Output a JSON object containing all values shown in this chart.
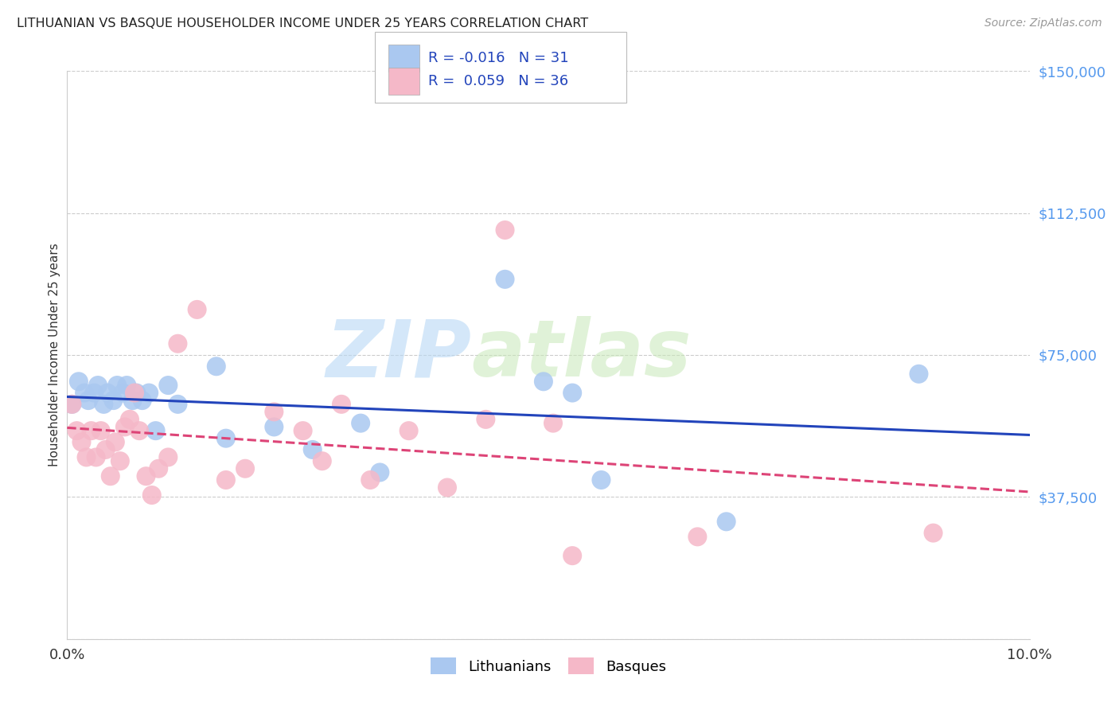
{
  "title": "LITHUANIAN VS BASQUE HOUSEHOLDER INCOME UNDER 25 YEARS CORRELATION CHART",
  "source": "Source: ZipAtlas.com",
  "ylabel": "Householder Income Under 25 years",
  "xlim": [
    0.0,
    10.0
  ],
  "ylim": [
    0,
    150000
  ],
  "yticks": [
    0,
    37500,
    75000,
    112500,
    150000
  ],
  "ytick_labels": [
    "",
    "$37,500",
    "$75,000",
    "$112,500",
    "$150,000"
  ],
  "background_color": "#ffffff",
  "grid_color": "#cccccc",
  "watermark_zip": "ZIP",
  "watermark_atlas": "atlas",
  "legend_R_lith": "-0.016",
  "legend_N_lith": "31",
  "legend_R_basq": "0.059",
  "legend_N_basq": "36",
  "lith_color": "#aac8f0",
  "basq_color": "#f5b8c8",
  "lith_line_color": "#2244bb",
  "basq_line_color": "#dd4477",
  "title_color": "#222222",
  "axis_label_color": "#333333",
  "ytick_color": "#5599ee",
  "source_color": "#999999",
  "lith_x": [
    0.05,
    0.12,
    0.18,
    0.22,
    0.28,
    0.32,
    0.38,
    0.42,
    0.48,
    0.52,
    0.58,
    0.62,
    0.68,
    0.72,
    0.78,
    0.85,
    0.92,
    1.05,
    1.15,
    1.55,
    1.65,
    2.15,
    2.55,
    3.05,
    3.25,
    4.55,
    4.95,
    5.25,
    5.55,
    6.85,
    8.85
  ],
  "lith_y": [
    62000,
    68000,
    65000,
    63000,
    65000,
    67000,
    62000,
    65000,
    63000,
    67000,
    65000,
    67000,
    63000,
    65000,
    63000,
    65000,
    55000,
    67000,
    62000,
    72000,
    53000,
    56000,
    50000,
    57000,
    44000,
    95000,
    68000,
    65000,
    42000,
    31000,
    70000
  ],
  "basq_x": [
    0.05,
    0.1,
    0.15,
    0.2,
    0.25,
    0.3,
    0.35,
    0.4,
    0.45,
    0.5,
    0.55,
    0.6,
    0.65,
    0.7,
    0.75,
    0.82,
    0.88,
    0.95,
    1.05,
    1.15,
    1.35,
    1.65,
    1.85,
    2.15,
    2.45,
    2.65,
    2.85,
    3.15,
    3.55,
    3.95,
    4.35,
    4.55,
    5.05,
    5.25,
    6.55,
    9.0
  ],
  "basq_y": [
    62000,
    55000,
    52000,
    48000,
    55000,
    48000,
    55000,
    50000,
    43000,
    52000,
    47000,
    56000,
    58000,
    65000,
    55000,
    43000,
    38000,
    45000,
    48000,
    78000,
    87000,
    42000,
    45000,
    60000,
    55000,
    47000,
    62000,
    42000,
    55000,
    40000,
    58000,
    108000,
    57000,
    22000,
    27000,
    28000
  ]
}
